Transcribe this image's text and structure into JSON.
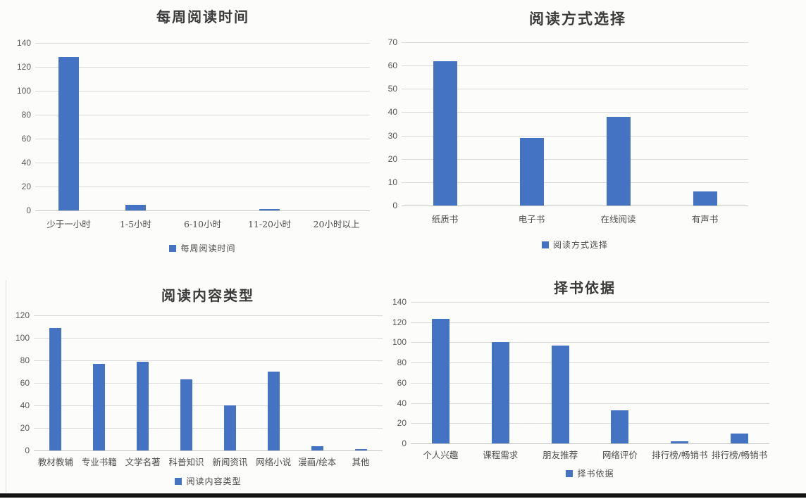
{
  "page": {
    "background": "#fcfcfb",
    "bottom_bar_color": "#141414"
  },
  "colors": {
    "bar": "#4573c4",
    "gridline": "#d9d9d9",
    "axis_baseline": "#c5c5c5",
    "tick_label": "#595959",
    "title": "#3a3a3a",
    "legend_text": "#4a4a4a"
  },
  "chart_data": [
    {
      "type": "bar",
      "title": "每周阅读时间",
      "legend": "每周阅读时间",
      "legend_position": "bottom",
      "grid": true,
      "xlabel": "",
      "ylabel": "",
      "categories": [
        "少于一小时",
        "1-5小时",
        "6-10小时",
        "11-20小时",
        "20小时以上"
      ],
      "values": [
        128,
        5,
        0,
        1,
        0
      ],
      "ylim": [
        0,
        140
      ],
      "ytick_step": 20
    },
    {
      "type": "bar",
      "title": "阅读方式选择",
      "legend": "阅读方式选择",
      "legend_position": "bottom",
      "grid": true,
      "xlabel": "",
      "ylabel": "",
      "categories": [
        "纸质书",
        "电子书",
        "在线阅读",
        "有声书"
      ],
      "values": [
        62,
        29,
        38,
        6
      ],
      "ylim": [
        0,
        70
      ],
      "ytick_step": 10
    },
    {
      "type": "bar",
      "title": "阅读内容类型",
      "legend": "阅读内容类型",
      "legend_position": "bottom",
      "grid": true,
      "xlabel": "",
      "ylabel": "",
      "categories": [
        "教材教辅",
        "专业书籍",
        "文学名著",
        "科普知识",
        "新闻资讯",
        "网络小说",
        "漫画/绘本",
        "其他"
      ],
      "values": [
        109,
        77,
        79,
        63,
        40,
        70,
        4,
        1
      ],
      "ylim": [
        0,
        120
      ],
      "ytick_step": 20
    },
    {
      "type": "bar",
      "title": "择书依据",
      "legend": "择书依据",
      "legend_position": "bottom",
      "grid": true,
      "xlabel": "",
      "ylabel": "",
      "categories": [
        "个人兴趣",
        "课程需求",
        "朋友推荐",
        "网络评价",
        "排行榜/畅销书",
        "排行榜/畅销书"
      ],
      "values": [
        123,
        100,
        97,
        33,
        2,
        10
      ],
      "ylim": [
        0,
        140
      ],
      "ytick_step": 20
    }
  ]
}
